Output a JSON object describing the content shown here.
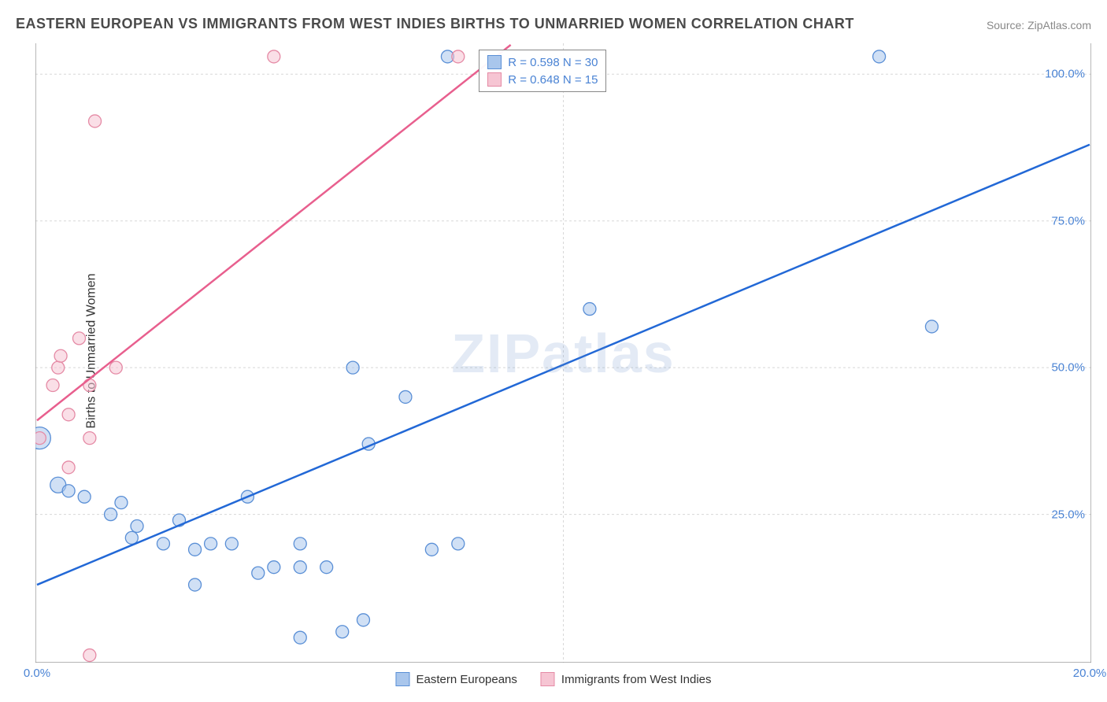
{
  "title": "EASTERN EUROPEAN VS IMMIGRANTS FROM WEST INDIES BIRTHS TO UNMARRIED WOMEN CORRELATION CHART",
  "source": "Source: ZipAtlas.com",
  "watermark": "ZIPatlas",
  "y_axis_label": "Births to Unmarried Women",
  "chart": {
    "type": "scatter",
    "xlim": [
      0,
      20
    ],
    "ylim": [
      0,
      105
    ],
    "x_ticks": [
      0,
      20
    ],
    "x_tick_labels": [
      "0.0%",
      "20.0%"
    ],
    "y_ticks": [
      25,
      50,
      75,
      100
    ],
    "y_tick_labels": [
      "25.0%",
      "50.0%",
      "75.0%",
      "100.0%"
    ],
    "grid_color": "#d8d8d8",
    "axis_color": "#888888",
    "background_color": "#ffffff",
    "tick_font_color": "#4a83d4",
    "tick_font_size": 15,
    "series": [
      {
        "name": "Eastern Europeans",
        "fill_color": "#a9c6ec",
        "stroke_color": "#5a8fd6",
        "trend_color": "#2268d6",
        "trend_width": 2.5,
        "R": 0.598,
        "N": 30,
        "trend": {
          "x1": 0,
          "y1": 13,
          "x2": 20,
          "y2": 88
        },
        "points": [
          {
            "x": 0.05,
            "y": 38,
            "r": 14
          },
          {
            "x": 0.4,
            "y": 30,
            "r": 10
          },
          {
            "x": 0.6,
            "y": 29,
            "r": 8
          },
          {
            "x": 0.9,
            "y": 28,
            "r": 8
          },
          {
            "x": 1.4,
            "y": 25,
            "r": 8
          },
          {
            "x": 1.8,
            "y": 21,
            "r": 8
          },
          {
            "x": 1.6,
            "y": 27,
            "r": 8
          },
          {
            "x": 1.9,
            "y": 23,
            "r": 8
          },
          {
            "x": 2.4,
            "y": 20,
            "r": 8
          },
          {
            "x": 2.7,
            "y": 24,
            "r": 8
          },
          {
            "x": 3.0,
            "y": 19,
            "r": 8
          },
          {
            "x": 3.3,
            "y": 20,
            "r": 8
          },
          {
            "x": 3.0,
            "y": 13,
            "r": 8
          },
          {
            "x": 3.7,
            "y": 20,
            "r": 8
          },
          {
            "x": 4.0,
            "y": 28,
            "r": 8
          },
          {
            "x": 4.2,
            "y": 15,
            "r": 8
          },
          {
            "x": 4.5,
            "y": 16,
            "r": 8
          },
          {
            "x": 5.0,
            "y": 16,
            "r": 8
          },
          {
            "x": 5.0,
            "y": 4,
            "r": 8
          },
          {
            "x": 5.0,
            "y": 20,
            "r": 8
          },
          {
            "x": 5.5,
            "y": 16,
            "r": 8
          },
          {
            "x": 5.8,
            "y": 5,
            "r": 8
          },
          {
            "x": 6.2,
            "y": 7,
            "r": 8
          },
          {
            "x": 6.0,
            "y": 50,
            "r": 8
          },
          {
            "x": 6.3,
            "y": 37,
            "r": 8
          },
          {
            "x": 7.0,
            "y": 45,
            "r": 8
          },
          {
            "x": 7.5,
            "y": 19,
            "r": 8
          },
          {
            "x": 7.8,
            "y": 103,
            "r": 8
          },
          {
            "x": 8.0,
            "y": 20,
            "r": 8
          },
          {
            "x": 10.5,
            "y": 60,
            "r": 8
          },
          {
            "x": 16.0,
            "y": 103,
            "r": 8
          },
          {
            "x": 17.0,
            "y": 57,
            "r": 8
          }
        ]
      },
      {
        "name": "Immigrants from West Indies",
        "fill_color": "#f6c5d3",
        "stroke_color": "#e58aa5",
        "trend_color": "#e85f8e",
        "trend_width": 2.5,
        "R": 0.648,
        "N": 15,
        "trend": {
          "x1": 0,
          "y1": 41,
          "x2": 9,
          "y2": 105
        },
        "points": [
          {
            "x": 0.05,
            "y": 38,
            "r": 8
          },
          {
            "x": 0.3,
            "y": 47,
            "r": 8
          },
          {
            "x": 0.4,
            "y": 50,
            "r": 8
          },
          {
            "x": 0.45,
            "y": 52,
            "r": 8
          },
          {
            "x": 0.6,
            "y": 42,
            "r": 8
          },
          {
            "x": 0.6,
            "y": 33,
            "r": 8
          },
          {
            "x": 0.8,
            "y": 55,
            "r": 8
          },
          {
            "x": 1.0,
            "y": 38,
            "r": 8
          },
          {
            "x": 1.0,
            "y": 47,
            "r": 8
          },
          {
            "x": 1.1,
            "y": 92,
            "r": 8
          },
          {
            "x": 1.5,
            "y": 50,
            "r": 8
          },
          {
            "x": 1.0,
            "y": 1,
            "r": 8
          },
          {
            "x": 4.5,
            "y": 103,
            "r": 8
          },
          {
            "x": 8.0,
            "y": 103,
            "r": 8
          }
        ]
      }
    ]
  },
  "stat_box": {
    "rows": [
      {
        "swatch_fill": "#a9c6ec",
        "swatch_stroke": "#5a8fd6",
        "text": "R = 0.598   N = 30"
      },
      {
        "swatch_fill": "#f6c5d3",
        "swatch_stroke": "#e58aa5",
        "text": "R = 0.648   N = 15"
      }
    ]
  },
  "bottom_legend": [
    {
      "swatch_fill": "#a9c6ec",
      "swatch_stroke": "#5a8fd6",
      "label": "Eastern Europeans"
    },
    {
      "swatch_fill": "#f6c5d3",
      "swatch_stroke": "#e58aa5",
      "label": "Immigrants from West Indies"
    }
  ]
}
